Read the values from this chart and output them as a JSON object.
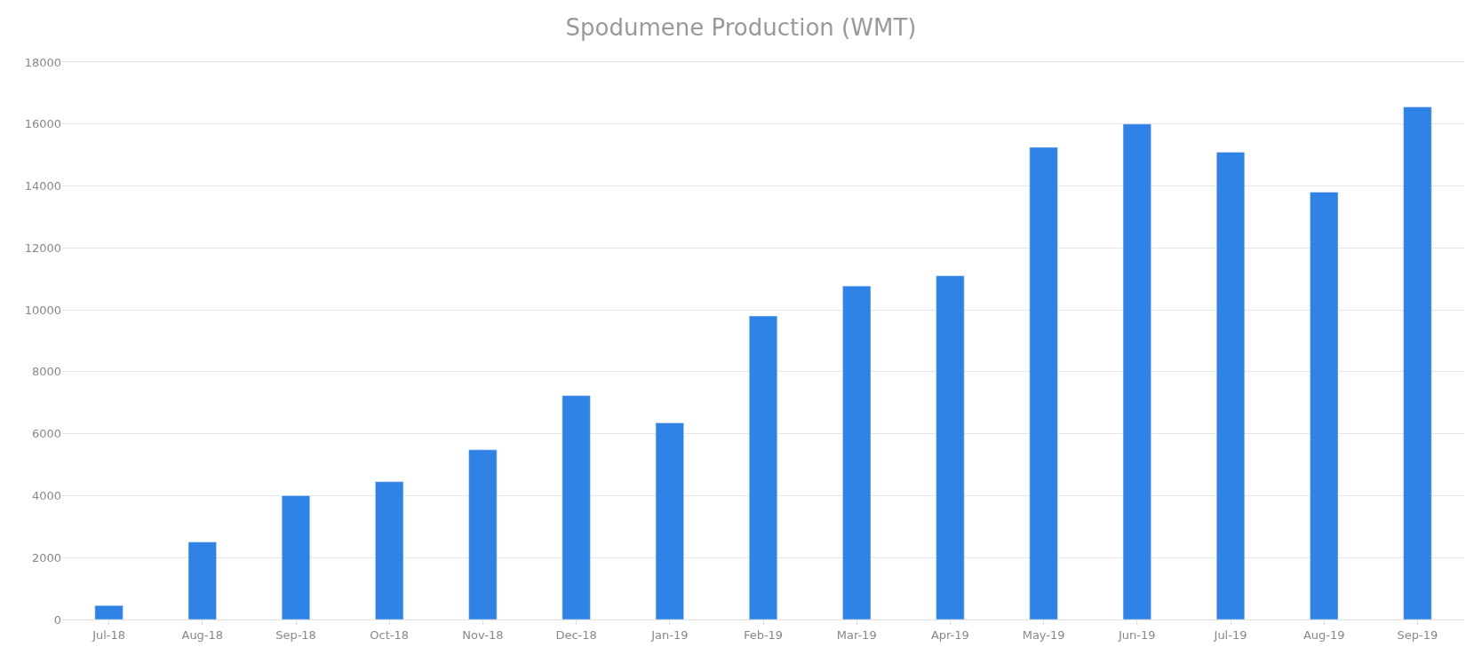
{
  "chart_data": {
    "type": "bar",
    "title": "Spodumene Production (WMT)",
    "categories": [
      "Jul-18",
      "Aug-18",
      "Sep-18",
      "Oct-18",
      "Nov-18",
      "Dec-18",
      "Jan-19",
      "Feb-19",
      "Mar-19",
      "Apr-19",
      "May-19",
      "Jun-19",
      "Jul-19",
      "Aug-19",
      "Sep-19"
    ],
    "values": [
      450,
      2500,
      4000,
      4450,
      5480,
      7230,
      6350,
      9800,
      10770,
      11100,
      15250,
      16000,
      15090,
      13800,
      16550
    ],
    "color": "#2f82e6",
    "ylim": [
      0,
      18000
    ],
    "yticks": [
      0,
      2000,
      4000,
      6000,
      8000,
      10000,
      12000,
      14000,
      16000,
      18000
    ],
    "grid": "y"
  }
}
